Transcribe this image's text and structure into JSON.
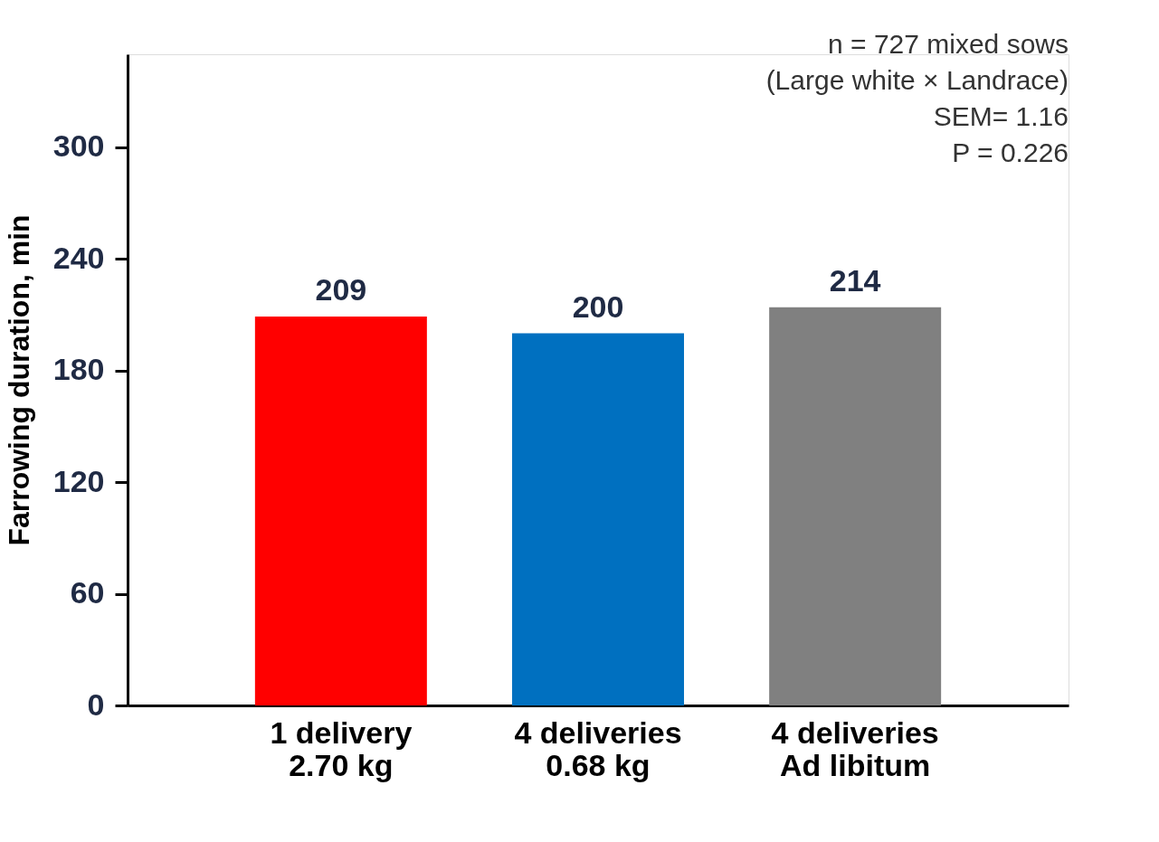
{
  "chart_data": {
    "type": "bar",
    "ylabel": "Farrowing duration, min",
    "categories": [
      "1 delivery\n2.70 kg",
      "4 deliveries\n0.68 kg",
      "4 deliveries\nAd libitum"
    ],
    "values": [
      209,
      200,
      214
    ],
    "colors": [
      "#ff0000",
      "#0070c0",
      "#808080"
    ],
    "ylim": [
      0,
      350
    ],
    "yticks": [
      0,
      60,
      120,
      180,
      240,
      300
    ],
    "grid": false,
    "data_labels": true,
    "annotations": [
      "n = 727 mixed sows",
      "(Large white × Landrace)",
      "SEM= 1.16",
      "P = 0.226"
    ]
  }
}
